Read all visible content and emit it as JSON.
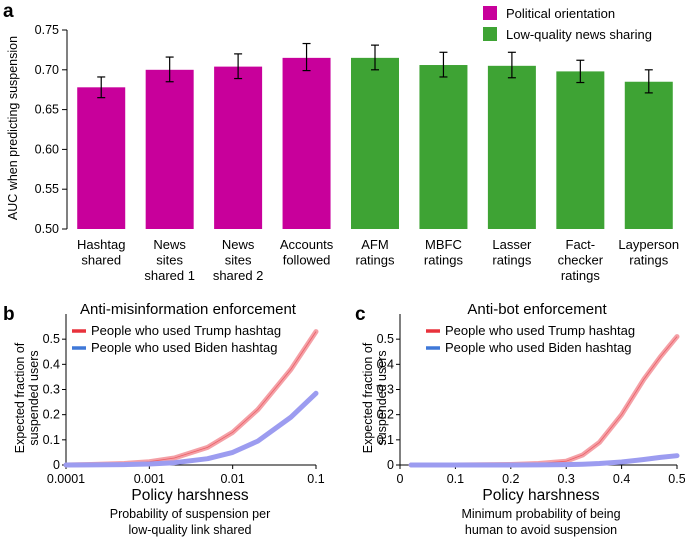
{
  "panel_letters": [
    "a",
    "b",
    "c"
  ],
  "chart_data": [
    {
      "panel": "a",
      "type": "bar",
      "title": "",
      "xlabel": "",
      "ylabel": "AUC when predicting suspension",
      "ylim": [
        0.5,
        0.75
      ],
      "yticks": [
        "0.50",
        "0.55",
        "0.60",
        "0.65",
        "0.70",
        "0.75"
      ],
      "ytick_values": [
        0.5,
        0.55,
        0.6,
        0.65,
        0.7,
        0.75
      ],
      "categories": [
        [
          "Hashtag",
          "shared"
        ],
        [
          "News",
          "sites",
          "shared 1"
        ],
        [
          "News",
          "sites",
          "shared 2"
        ],
        [
          "Accounts",
          "followed"
        ],
        [
          "AFM",
          "ratings"
        ],
        [
          "MBFC",
          "ratings"
        ],
        [
          "Lasser",
          "ratings"
        ],
        [
          "Fact-",
          "checker",
          "ratings"
        ],
        [
          "Layperson",
          "ratings"
        ]
      ],
      "values": [
        0.678,
        0.7,
        0.704,
        0.715,
        0.715,
        0.706,
        0.705,
        0.698,
        0.685
      ],
      "error_low": [
        0.665,
        0.685,
        0.689,
        0.699,
        0.7,
        0.691,
        0.69,
        0.684,
        0.671
      ],
      "error_high": [
        0.691,
        0.716,
        0.72,
        0.733,
        0.731,
        0.722,
        0.722,
        0.712,
        0.7
      ],
      "groups": [
        0,
        0,
        0,
        0,
        1,
        1,
        1,
        1,
        1
      ],
      "legend": [
        {
          "label": "Political orientation",
          "color": "#c8009b"
        },
        {
          "label": "Low-quality news sharing",
          "color": "#3ea334"
        }
      ],
      "legend_position": "top-right"
    },
    {
      "panel": "b",
      "type": "line",
      "title": "Anti-misinformation enforcement",
      "xlabel": "Policy harshness",
      "xsublabel": [
        "Probability of suspension per",
        "low-quality link shared"
      ],
      "ylabel": [
        "Expected fraction of",
        "suspended users"
      ],
      "xscale": "log",
      "xlim": [
        0.0001,
        0.1
      ],
      "xticks": [
        "0.0001",
        "0.001",
        "0.01",
        "0.1"
      ],
      "xtick_values": [
        0.0001,
        0.001,
        0.01,
        0.1
      ],
      "ylim": [
        0,
        0.6
      ],
      "yticks": [
        "0",
        "0.1",
        "0.2",
        "0.3",
        "0.4",
        "0.5"
      ],
      "ytick_values": [
        0,
        0.1,
        0.2,
        0.3,
        0.4,
        0.5
      ],
      "x": [
        0.0001,
        0.0002,
        0.0005,
        0.001,
        0.002,
        0.005,
        0.01,
        0.02,
        0.05,
        0.1
      ],
      "series": [
        {
          "name": "People who used Trump hashtag",
          "color": "#f4a0a6",
          "legend_color": "#e8323c",
          "values": [
            0.0,
            0.002,
            0.006,
            0.013,
            0.028,
            0.07,
            0.13,
            0.22,
            0.38,
            0.53
          ]
        },
        {
          "name": "People who used Biden hashtag",
          "color": "#9c9cf0",
          "legend_color": "#3f78d8",
          "values": [
            0.0,
            0.0005,
            0.0015,
            0.004,
            0.009,
            0.025,
            0.05,
            0.095,
            0.19,
            0.285
          ]
        }
      ],
      "legend_position": "top-left"
    },
    {
      "panel": "c",
      "type": "line",
      "title": "Anti-bot enforcement",
      "xlabel": "Policy harshness",
      "xsublabel": [
        "Minimum probability of being",
        "human to avoid suspension"
      ],
      "ylabel": [
        "Expected fraction of",
        "suspended users"
      ],
      "xlim": [
        0,
        0.5
      ],
      "xticks": [
        "0",
        "0.1",
        "0.2",
        "0.3",
        "0.4",
        "0.5"
      ],
      "xtick_values": [
        0,
        0.1,
        0.2,
        0.3,
        0.4,
        0.5
      ],
      "ylim": [
        0,
        0.6
      ],
      "yticks": [
        "0",
        "0.1",
        "0.2",
        "0.3",
        "0.4",
        "0.5"
      ],
      "ytick_values": [
        0,
        0.1,
        0.2,
        0.3,
        0.4,
        0.5
      ],
      "x": [
        0.02,
        0.1,
        0.2,
        0.25,
        0.3,
        0.33,
        0.36,
        0.4,
        0.44,
        0.47,
        0.5
      ],
      "series": [
        {
          "name": "People who used Trump hashtag",
          "color": "#f4a0a6",
          "legend_color": "#e8323c",
          "values": [
            0.0,
            0.0,
            0.002,
            0.006,
            0.015,
            0.04,
            0.09,
            0.2,
            0.34,
            0.43,
            0.51
          ]
        },
        {
          "name": "People who used Biden hashtag",
          "color": "#9c9cf0",
          "legend_color": "#3f78d8",
          "values": [
            0.0,
            0.0,
            0.0,
            0.0005,
            0.0015,
            0.003,
            0.006,
            0.012,
            0.022,
            0.03,
            0.037
          ]
        }
      ],
      "legend_position": "top-left"
    }
  ]
}
